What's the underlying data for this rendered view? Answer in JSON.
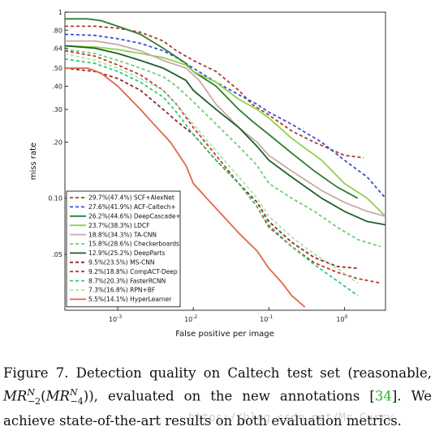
{
  "chart_data": {
    "type": "line",
    "xlabel": "False positive per image",
    "ylabel": "miss rate",
    "x_scale": "log",
    "y_scale": "log",
    "xlim": [
      0.0002,
      3.5
    ],
    "ylim": [
      0.025,
      1
    ],
    "x_ticks": [
      {
        "value": 0.001,
        "base": "10",
        "exp": "-3"
      },
      {
        "value": 0.01,
        "base": "10",
        "exp": "-2"
      },
      {
        "value": 0.1,
        "base": "10",
        "exp": "-1"
      },
      {
        "value": 1,
        "base": "10",
        "exp": "0"
      }
    ],
    "y_ticks": [
      {
        "value": 1,
        "label": "1"
      },
      {
        "value": 0.8,
        "label": ".80"
      },
      {
        "value": 0.64,
        "label": ".64"
      },
      {
        "value": 0.5,
        "label": ".50"
      },
      {
        "value": 0.4,
        "label": ".40"
      },
      {
        "value": 0.3,
        "label": ".30"
      },
      {
        "value": 0.2,
        "label": ".20"
      },
      {
        "value": 0.1,
        "label": "0.10"
      },
      {
        "value": 0.05,
        "label": ".05"
      }
    ],
    "grid": false,
    "legend_position": "bottom-left",
    "series": [
      {
        "name": "29.7%(47.4%) SCF+AlexNet",
        "color": "#b03a2e",
        "dash": "4,3",
        "points": [
          [
            0.0002,
            0.84
          ],
          [
            0.0005,
            0.84
          ],
          [
            0.001,
            0.82
          ],
          [
            0.002,
            0.78
          ],
          [
            0.004,
            0.7
          ],
          [
            0.006,
            0.62
          ],
          [
            0.01,
            0.55
          ],
          [
            0.02,
            0.48
          ],
          [
            0.04,
            0.38
          ],
          [
            0.06,
            0.32
          ],
          [
            0.1,
            0.28
          ],
          [
            0.2,
            0.23
          ],
          [
            0.4,
            0.2
          ],
          [
            1,
            0.17
          ],
          [
            1.8,
            0.165
          ]
        ]
      },
      {
        "name": "27.6%(41.9%) ACF-Caltech+",
        "color": "#3b4fd1",
        "dash": "4,3",
        "points": [
          [
            0.0002,
            0.76
          ],
          [
            0.0005,
            0.75
          ],
          [
            0.001,
            0.72
          ],
          [
            0.002,
            0.68
          ],
          [
            0.004,
            0.62
          ],
          [
            0.006,
            0.57
          ],
          [
            0.01,
            0.5
          ],
          [
            0.02,
            0.42
          ],
          [
            0.04,
            0.36
          ],
          [
            0.07,
            0.32
          ],
          [
            0.1,
            0.29
          ],
          [
            0.2,
            0.25
          ],
          [
            0.5,
            0.2
          ],
          [
            1,
            0.16
          ],
          [
            2,
            0.13
          ],
          [
            3.5,
            0.1
          ]
        ]
      },
      {
        "name": "26.2%(44.6%) DeepCascade+",
        "color": "#2e7d32",
        "dash": "",
        "points": [
          [
            0.0002,
            0.92
          ],
          [
            0.0004,
            0.92
          ],
          [
            0.0006,
            0.9
          ],
          [
            0.001,
            0.84
          ],
          [
            0.002,
            0.76
          ],
          [
            0.004,
            0.64
          ],
          [
            0.008,
            0.53
          ],
          [
            0.01,
            0.48
          ],
          [
            0.02,
            0.4
          ],
          [
            0.04,
            0.3
          ],
          [
            0.06,
            0.26
          ],
          [
            0.1,
            0.22
          ],
          [
            0.2,
            0.175
          ],
          [
            0.4,
            0.14
          ],
          [
            0.8,
            0.115
          ],
          [
            1.5,
            0.1
          ]
        ]
      },
      {
        "name": "23.7%(38.3%) LDCF",
        "color": "#8ed24a",
        "dash": "",
        "points": [
          [
            0.0002,
            0.66
          ],
          [
            0.0005,
            0.65
          ],
          [
            0.001,
            0.63
          ],
          [
            0.002,
            0.6
          ],
          [
            0.004,
            0.57
          ],
          [
            0.008,
            0.52
          ],
          [
            0.01,
            0.48
          ],
          [
            0.02,
            0.42
          ],
          [
            0.04,
            0.34
          ],
          [
            0.07,
            0.3
          ],
          [
            0.1,
            0.27
          ],
          [
            0.2,
            0.21
          ],
          [
            0.5,
            0.16
          ],
          [
            1,
            0.12
          ],
          [
            2,
            0.1
          ],
          [
            3.5,
            0.08
          ]
        ]
      },
      {
        "name": "18.8%(34.3%) TA-CNN",
        "color": "#c8aaaa",
        "dash": "",
        "points": [
          [
            0.0002,
            0.7
          ],
          [
            0.0005,
            0.7
          ],
          [
            0.001,
            0.67
          ],
          [
            0.002,
            0.62
          ],
          [
            0.004,
            0.55
          ],
          [
            0.008,
            0.5
          ],
          [
            0.012,
            0.43
          ],
          [
            0.02,
            0.32
          ],
          [
            0.04,
            0.24
          ],
          [
            0.07,
            0.2
          ],
          [
            0.1,
            0.17
          ],
          [
            0.2,
            0.14
          ],
          [
            0.5,
            0.11
          ],
          [
            1,
            0.095
          ],
          [
            2,
            0.085
          ],
          [
            3.5,
            0.08
          ]
        ]
      },
      {
        "name": "15.8%(28.6%) Checkerboards",
        "color": "#6fcf6f",
        "dash": "4,3",
        "points": [
          [
            0.0002,
            0.63
          ],
          [
            0.0005,
            0.6
          ],
          [
            0.001,
            0.55
          ],
          [
            0.002,
            0.5
          ],
          [
            0.004,
            0.45
          ],
          [
            0.006,
            0.4
          ],
          [
            0.01,
            0.33
          ],
          [
            0.02,
            0.25
          ],
          [
            0.04,
            0.19
          ],
          [
            0.07,
            0.15
          ],
          [
            0.1,
            0.12
          ],
          [
            0.2,
            0.1
          ],
          [
            0.4,
            0.085
          ],
          [
            0.8,
            0.07
          ],
          [
            1.5,
            0.06
          ],
          [
            3,
            0.055
          ]
        ]
      },
      {
        "name": "12.9%(25.2%) DeepParts",
        "color": "#1e5e2a",
        "dash": "",
        "points": [
          [
            0.0002,
            0.66
          ],
          [
            0.0005,
            0.64
          ],
          [
            0.001,
            0.6
          ],
          [
            0.002,
            0.55
          ],
          [
            0.004,
            0.5
          ],
          [
            0.008,
            0.43
          ],
          [
            0.01,
            0.38
          ],
          [
            0.02,
            0.3
          ],
          [
            0.04,
            0.24
          ],
          [
            0.07,
            0.19
          ],
          [
            0.1,
            0.16
          ],
          [
            0.2,
            0.13
          ],
          [
            0.5,
            0.1
          ],
          [
            1,
            0.085
          ],
          [
            2,
            0.075
          ],
          [
            3.5,
            0.072
          ]
        ]
      },
      {
        "name": "9.5%(23.5%) MS-CNN",
        "color": "#8a2a2a",
        "dash": "4,3",
        "points": [
          [
            0.0002,
            0.5
          ],
          [
            0.0005,
            0.48
          ],
          [
            0.001,
            0.44
          ],
          [
            0.002,
            0.38
          ],
          [
            0.004,
            0.3
          ],
          [
            0.006,
            0.26
          ],
          [
            0.01,
            0.22
          ],
          [
            0.02,
            0.16
          ],
          [
            0.04,
            0.12
          ],
          [
            0.07,
            0.095
          ],
          [
            0.1,
            0.075
          ],
          [
            0.2,
            0.058
          ],
          [
            0.4,
            0.048
          ],
          [
            0.8,
            0.043
          ],
          [
            1.5,
            0.042
          ]
        ]
      },
      {
        "name": "9.2%(18.8%) CompACT-Deep",
        "color": "#c0392b",
        "dash": "4,3",
        "points": [
          [
            0.0002,
            0.62
          ],
          [
            0.0005,
            0.58
          ],
          [
            0.001,
            0.52
          ],
          [
            0.002,
            0.46
          ],
          [
            0.004,
            0.38
          ],
          [
            0.006,
            0.32
          ],
          [
            0.01,
            0.24
          ],
          [
            0.02,
            0.17
          ],
          [
            0.04,
            0.12
          ],
          [
            0.07,
            0.09
          ],
          [
            0.1,
            0.07
          ],
          [
            0.2,
            0.055
          ],
          [
            0.4,
            0.045
          ],
          [
            0.8,
            0.04
          ],
          [
            1.5,
            0.037
          ],
          [
            3,
            0.035
          ]
        ]
      },
      {
        "name": "8.7%(20.3%) FasterRCNN",
        "color": "#2ecc71",
        "dash": "4,3",
        "points": [
          [
            0.0002,
            0.56
          ],
          [
            0.0005,
            0.53
          ],
          [
            0.001,
            0.48
          ],
          [
            0.002,
            0.42
          ],
          [
            0.004,
            0.35
          ],
          [
            0.006,
            0.29
          ],
          [
            0.01,
            0.22
          ],
          [
            0.02,
            0.16
          ],
          [
            0.04,
            0.12
          ],
          [
            0.07,
            0.09
          ],
          [
            0.1,
            0.072
          ],
          [
            0.2,
            0.055
          ],
          [
            0.4,
            0.044
          ],
          [
            0.8,
            0.036
          ],
          [
            1.5,
            0.03
          ]
        ]
      },
      {
        "name": "7.3%(16.8%) RPN+BF",
        "color": "#a8e6a8",
        "dash": "4,3",
        "points": [
          [
            0.0002,
            0.6
          ],
          [
            0.0005,
            0.55
          ],
          [
            0.001,
            0.5
          ],
          [
            0.002,
            0.44
          ],
          [
            0.004,
            0.38
          ],
          [
            0.006,
            0.32
          ],
          [
            0.01,
            0.25
          ],
          [
            0.02,
            0.18
          ],
          [
            0.04,
            0.13
          ],
          [
            0.07,
            0.1
          ],
          [
            0.1,
            0.08
          ],
          [
            0.2,
            0.062
          ],
          [
            0.4,
            0.05
          ],
          [
            0.8,
            0.042
          ],
          [
            1.5,
            0.035
          ]
        ]
      },
      {
        "name": "5.5%(14.1%) HyperLearner",
        "color": "#e06848",
        "dash": "",
        "points": [
          [
            0.0002,
            0.5
          ],
          [
            0.0004,
            0.5
          ],
          [
            0.0006,
            0.47
          ],
          [
            0.001,
            0.4
          ],
          [
            0.002,
            0.3
          ],
          [
            0.003,
            0.25
          ],
          [
            0.005,
            0.2
          ],
          [
            0.008,
            0.15
          ],
          [
            0.01,
            0.12
          ],
          [
            0.015,
            0.1
          ],
          [
            0.025,
            0.08
          ],
          [
            0.04,
            0.065
          ],
          [
            0.07,
            0.052
          ],
          [
            0.1,
            0.042
          ],
          [
            0.15,
            0.035
          ],
          [
            0.2,
            0.03
          ],
          [
            0.3,
            0.026
          ]
        ]
      }
    ]
  },
  "caption": {
    "lead": "Figure 7. Detection quality on Caltech test set (reasonable, ",
    "math_1_main": "MR",
    "math_1_sup": "N",
    "math_1_sub": "−2",
    "math_open": "(",
    "math_2_main": "MR",
    "math_2_sup": "N",
    "math_2_sub": "−4",
    "math_close": ")), evaluated on the new annotations [",
    "ref": "34",
    "tail": "].  We achieve state-of-the-art results on both evaluation metrics."
  },
  "watermark": "https://blog.csdn.net/Mr_Curry"
}
